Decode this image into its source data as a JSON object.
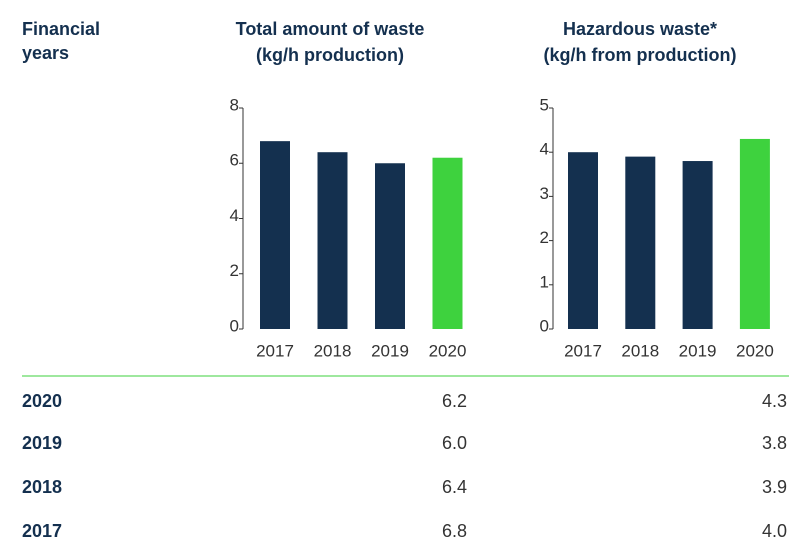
{
  "header": {
    "label": "Financial years"
  },
  "chart_data": [
    {
      "type": "bar",
      "title": "Total amount of waste",
      "unit": "(kg/h production)",
      "categories": [
        "2017",
        "2018",
        "2019",
        "2020"
      ],
      "values": [
        6.8,
        6.4,
        6.0,
        6.2
      ],
      "value_labels": [
        "6.8",
        "6.4",
        "6.0",
        "6.2"
      ],
      "colors": [
        "#14304f",
        "#14304f",
        "#14304f",
        "#3ed23e"
      ],
      "ylim": [
        0,
        8
      ],
      "yticks": [
        0,
        2,
        4,
        6,
        8
      ]
    },
    {
      "type": "bar",
      "title": "Hazardous waste*",
      "unit": "(kg/h from production)",
      "categories": [
        "2017",
        "2018",
        "2019",
        "2020"
      ],
      "values": [
        4.0,
        3.9,
        3.8,
        4.3
      ],
      "value_labels": [
        "4.0",
        "3.9",
        "3.8",
        "4.3"
      ],
      "colors": [
        "#14304f",
        "#14304f",
        "#14304f",
        "#3ed23e"
      ],
      "ylim": [
        0,
        5
      ],
      "yticks": [
        0,
        1,
        2,
        3,
        4,
        5
      ]
    }
  ]
}
